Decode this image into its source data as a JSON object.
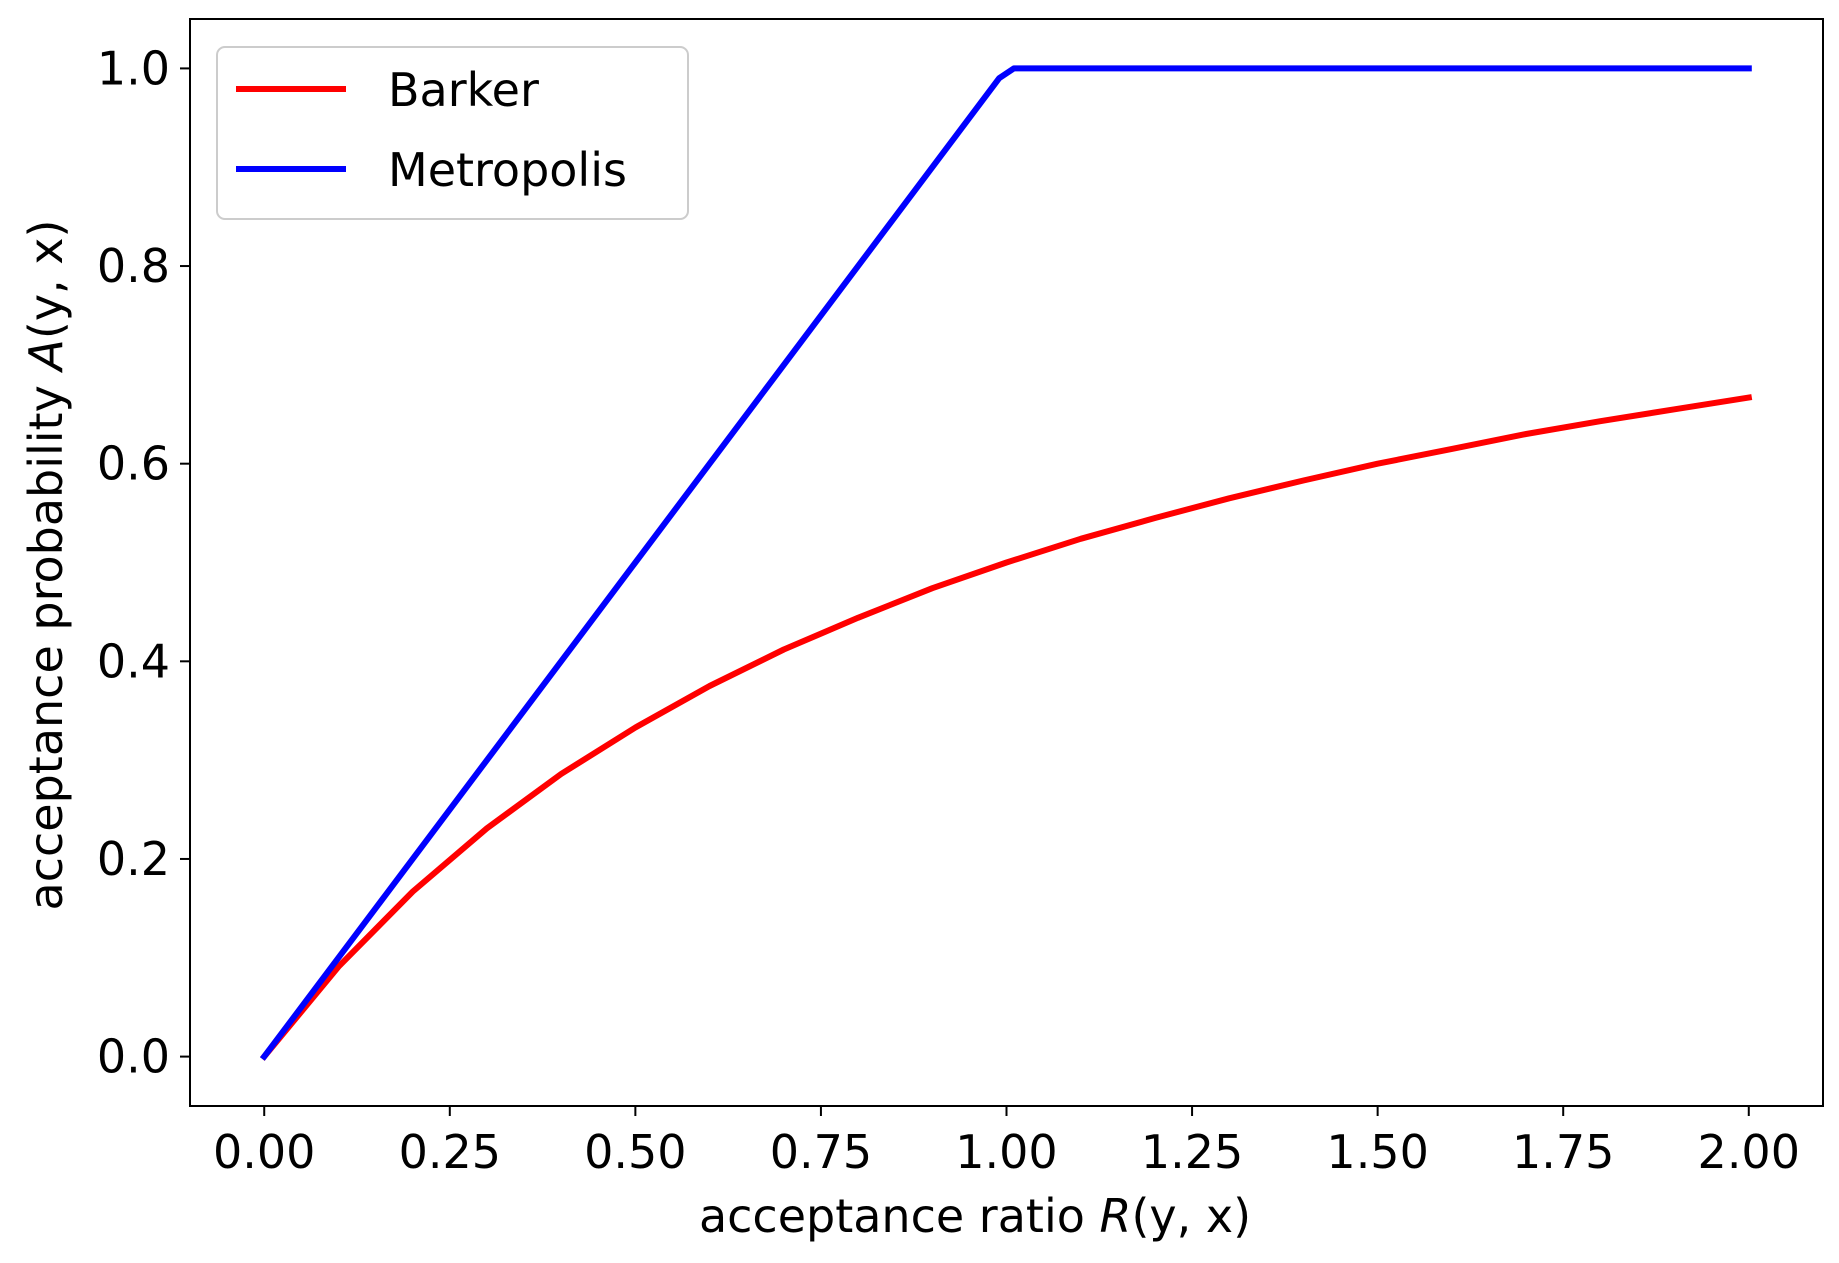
{
  "chart_data": {
    "type": "line",
    "title": "",
    "xlabel": "acceptance ratio R(y, x)",
    "xlabel_parts": {
      "text": "acceptance ratio ",
      "math_symbol": "R",
      "math_args": "(y, x)"
    },
    "ylabel": "acceptance probability A(y, x)",
    "ylabel_parts": {
      "text": "acceptance probability ",
      "math_symbol": "A",
      "math_args": "(y, x)"
    },
    "xlim": [
      -0.1,
      2.1
    ],
    "ylim": [
      -0.05,
      1.05
    ],
    "xticks": [
      0.0,
      0.25,
      0.5,
      0.75,
      1.0,
      1.25,
      1.5,
      1.75,
      2.0
    ],
    "xtick_labels": [
      "0.00",
      "0.25",
      "0.50",
      "0.75",
      "1.00",
      "1.25",
      "1.50",
      "1.75",
      "2.00"
    ],
    "yticks": [
      0.0,
      0.2,
      0.4,
      0.6,
      0.8,
      1.0
    ],
    "ytick_labels": [
      "0.0",
      "0.2",
      "0.4",
      "0.6",
      "0.8",
      "1.0"
    ],
    "grid": false,
    "legend_position": "upper-left",
    "series": [
      {
        "name": "Barker",
        "color": "#ff0000",
        "x": [
          0.0,
          0.1,
          0.2,
          0.3,
          0.4,
          0.5,
          0.6,
          0.7,
          0.8,
          0.9,
          1.0,
          1.1,
          1.2,
          1.3,
          1.4,
          1.5,
          1.6,
          1.7,
          1.8,
          1.9,
          2.0
        ],
        "y": [
          0.0,
          0.091,
          0.167,
          0.231,
          0.286,
          0.333,
          0.375,
          0.412,
          0.444,
          0.474,
          0.5,
          0.524,
          0.545,
          0.565,
          0.583,
          0.6,
          0.615,
          0.63,
          0.643,
          0.655,
          0.667
        ]
      },
      {
        "name": "Metropolis",
        "color": "#0000ff",
        "x": [
          0.0,
          0.99,
          1.01,
          2.0
        ],
        "y": [
          0.0,
          0.99,
          1.0,
          1.0
        ]
      }
    ]
  }
}
